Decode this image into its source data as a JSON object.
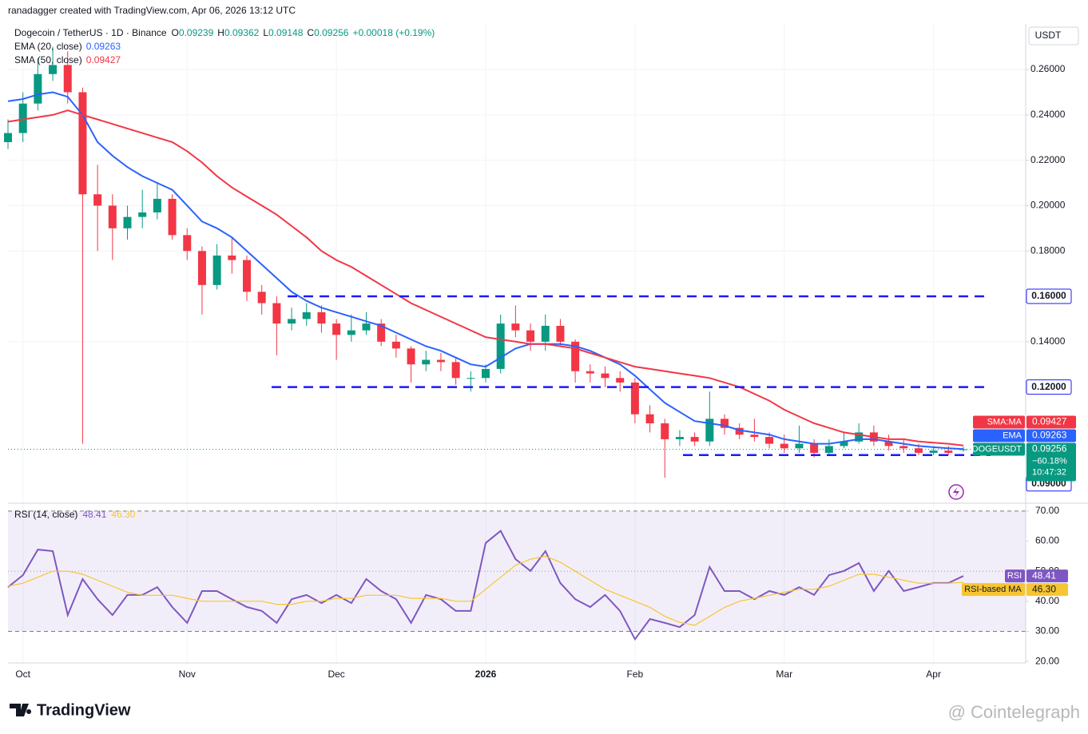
{
  "header": {
    "attribution": "ranadagger created with TradingView.com, Apr 06, 2026 13:12 UTC",
    "symbol": "Dogecoin / TetherUS · 1D · Binance",
    "ohlc_keys": [
      "O",
      "H",
      "L",
      "C"
    ],
    "change": "+0.00018 (+0.19%)",
    "currency": "USDT"
  },
  "chart_data": [
    {
      "type": "candlestick",
      "categories": [
        null,
        "Oct",
        null,
        null,
        null,
        null,
        null,
        null,
        null,
        null,
        null,
        null,
        "Nov",
        null,
        null,
        null,
        null,
        null,
        null,
        null,
        null,
        null,
        "Dec",
        null,
        null,
        null,
        null,
        null,
        null,
        null,
        null,
        null,
        "2026",
        null,
        null,
        null,
        null,
        null,
        null,
        null,
        null,
        null,
        "Feb",
        null,
        null,
        null,
        null,
        null,
        null,
        null,
        null,
        null,
        "Mar",
        null,
        null,
        null,
        null,
        null,
        null,
        null,
        null,
        null,
        "Apr",
        null,
        null
      ],
      "open": [
        0.228,
        0.232,
        0.245,
        0.258,
        0.262,
        0.25,
        0.205,
        0.2,
        0.19,
        0.195,
        0.197,
        0.203,
        0.187,
        0.18,
        0.165,
        0.178,
        0.176,
        0.162,
        0.157,
        0.148,
        0.15,
        0.153,
        0.148,
        0.143,
        0.145,
        0.148,
        0.14,
        0.137,
        0.13,
        0.132,
        0.131,
        0.124,
        0.124,
        0.128,
        0.148,
        0.145,
        0.14,
        0.147,
        0.14,
        0.127,
        0.126,
        0.124,
        0.122,
        0.108,
        0.104,
        0.097,
        0.098,
        0.096,
        0.106,
        0.102,
        0.099,
        0.098,
        0.095,
        0.093,
        0.095,
        0.091,
        0.094,
        0.096,
        0.1,
        0.096,
        0.094,
        0.093,
        0.091,
        0.092,
        0.09239
      ],
      "high": [
        0.238,
        0.25,
        0.265,
        0.27,
        0.268,
        0.252,
        0.218,
        0.205,
        0.2,
        0.207,
        0.21,
        0.205,
        0.19,
        0.182,
        0.183,
        0.186,
        0.178,
        0.165,
        0.16,
        0.155,
        0.157,
        0.156,
        0.15,
        0.152,
        0.153,
        0.15,
        0.143,
        0.138,
        0.136,
        0.135,
        0.133,
        0.127,
        0.13,
        0.152,
        0.156,
        0.148,
        0.152,
        0.15,
        0.141,
        0.13,
        0.129,
        0.127,
        0.124,
        0.112,
        0.106,
        0.101,
        0.1,
        0.118,
        0.108,
        0.104,
        0.106,
        0.1,
        0.099,
        0.103,
        0.097,
        0.097,
        0.1,
        0.104,
        0.103,
        0.099,
        0.097,
        0.095,
        0.094,
        0.094,
        0.09362
      ],
      "low": [
        0.225,
        0.228,
        0.242,
        0.255,
        0.245,
        0.095,
        0.18,
        0.176,
        0.185,
        0.19,
        0.194,
        0.185,
        0.176,
        0.152,
        0.163,
        0.17,
        0.158,
        0.152,
        0.134,
        0.145,
        0.147,
        0.144,
        0.132,
        0.14,
        0.143,
        0.138,
        0.133,
        0.122,
        0.127,
        0.127,
        0.121,
        0.118,
        0.122,
        0.126,
        0.142,
        0.136,
        0.136,
        0.138,
        0.122,
        0.122,
        0.12,
        0.118,
        0.104,
        0.1,
        0.08,
        0.094,
        0.094,
        0.094,
        0.099,
        0.097,
        0.096,
        0.093,
        0.091,
        0.091,
        0.089,
        0.09,
        0.093,
        0.095,
        0.094,
        0.092,
        0.091,
        0.09,
        0.09,
        0.09,
        0.09148
      ],
      "close": [
        0.232,
        0.245,
        0.258,
        0.262,
        0.25,
        0.205,
        0.2,
        0.19,
        0.195,
        0.197,
        0.203,
        0.187,
        0.18,
        0.165,
        0.178,
        0.176,
        0.162,
        0.157,
        0.148,
        0.15,
        0.153,
        0.148,
        0.143,
        0.145,
        0.148,
        0.14,
        0.137,
        0.13,
        0.132,
        0.131,
        0.124,
        0.124,
        0.128,
        0.148,
        0.145,
        0.14,
        0.147,
        0.14,
        0.127,
        0.126,
        0.124,
        0.122,
        0.108,
        0.104,
        0.097,
        0.098,
        0.096,
        0.106,
        0.102,
        0.099,
        0.098,
        0.095,
        0.093,
        0.095,
        0.091,
        0.094,
        0.096,
        0.1,
        0.096,
        0.094,
        0.093,
        0.091,
        0.092,
        0.091,
        0.09256
      ],
      "up_color": "#089981",
      "down_color": "#f23645",
      "series": [
        {
          "name": "EMA (20, close)",
          "tag": "EMA",
          "color": "#2962ff",
          "values": [
            0.246,
            0.247,
            0.249,
            0.25,
            0.248,
            0.24,
            0.228,
            0.222,
            0.217,
            0.213,
            0.21,
            0.207,
            0.2,
            0.193,
            0.19,
            0.186,
            0.18,
            0.174,
            0.168,
            0.162,
            0.158,
            0.155,
            0.153,
            0.151,
            0.149,
            0.147,
            0.144,
            0.141,
            0.138,
            0.136,
            0.133,
            0.13,
            0.129,
            0.133,
            0.137,
            0.139,
            0.139,
            0.139,
            0.138,
            0.136,
            0.133,
            0.13,
            0.125,
            0.119,
            0.113,
            0.109,
            0.105,
            0.104,
            0.103,
            0.101,
            0.1,
            0.099,
            0.097,
            0.096,
            0.095,
            0.095,
            0.096,
            0.097,
            0.097,
            0.096,
            0.095,
            0.094,
            0.0935,
            0.093,
            0.09263
          ]
        },
        {
          "name": "SMA (50, close)",
          "tag": "SMA:MA",
          "color": "#f23645",
          "values": [
            0.237,
            0.238,
            0.239,
            0.24,
            0.242,
            0.24,
            0.238,
            0.236,
            0.234,
            0.232,
            0.23,
            0.228,
            0.224,
            0.219,
            0.213,
            0.208,
            0.204,
            0.2,
            0.196,
            0.191,
            0.186,
            0.18,
            0.176,
            0.173,
            0.169,
            0.165,
            0.161,
            0.157,
            0.154,
            0.151,
            0.148,
            0.145,
            0.142,
            0.141,
            0.14,
            0.139,
            0.139,
            0.138,
            0.137,
            0.135,
            0.133,
            0.131,
            0.129,
            0.128,
            0.127,
            0.126,
            0.125,
            0.124,
            0.122,
            0.12,
            0.117,
            0.114,
            0.11,
            0.107,
            0.104,
            0.102,
            0.1,
            0.099,
            0.098,
            0.097,
            0.097,
            0.096,
            0.0955,
            0.095,
            0.09427
          ]
        }
      ],
      "last_tag": "DOGEUSDT",
      "last_change_label": "−60.18%",
      "countdown": "10:47:32",
      "levels": [
        {
          "value": 0.16,
          "label": "0.16000"
        },
        {
          "value": 0.12,
          "label": "0.12000"
        },
        {
          "value": 0.09,
          "label": "0.09000"
        }
      ],
      "level_color": "#1a1aff",
      "ylim": [
        0.0688,
        0.2801
      ],
      "yticks": [
        {
          "value": 0.14,
          "label": "0.14000"
        },
        {
          "value": 0.18,
          "label": "0.18000"
        },
        {
          "value": 0.2,
          "label": "0.20000"
        },
        {
          "value": 0.22,
          "label": "0.22000"
        },
        {
          "value": 0.24,
          "label": "0.24000"
        },
        {
          "value": 0.26,
          "label": "0.26000"
        }
      ],
      "grid": true
    },
    {
      "type": "line",
      "title": "RSI (14, close)",
      "series": [
        {
          "name": "RSI",
          "color": "#7e57c2",
          "values": [
            44.7,
            48.7,
            57.2,
            56.7,
            35.4,
            47.4,
            40.7,
            35.4,
            42.1,
            42.1,
            44.7,
            38.1,
            32.8,
            43.4,
            43.4,
            40.7,
            38.1,
            36.8,
            32.8,
            40.7,
            42.1,
            39.4,
            42.1,
            39.4,
            47.4,
            43.4,
            40.7,
            32.8,
            42.1,
            40.7,
            36.8,
            36.8,
            59.4,
            63.4,
            54.0,
            50.1,
            56.7,
            46.1,
            40.7,
            38.1,
            42.1,
            36.8,
            27.4,
            34.1,
            32.8,
            31.4,
            35.4,
            51.4,
            43.4,
            43.4,
            40.7,
            43.4,
            42.1,
            44.7,
            42.1,
            48.7,
            50.1,
            52.7,
            43.4,
            50.1,
            43.4,
            44.7,
            46.1,
            46.1,
            48.41
          ]
        },
        {
          "name": "RSI-based MA",
          "color": "#f7c531",
          "last_label": "46.30",
          "values": [
            45,
            46,
            48,
            50,
            50,
            49,
            47,
            45,
            43,
            42,
            42,
            42,
            41,
            40,
            40,
            40,
            40,
            40,
            39,
            39,
            40,
            40,
            41,
            41,
            42,
            42,
            42,
            41,
            41,
            41,
            40,
            40,
            44,
            48,
            52,
            54,
            55,
            53,
            50,
            47,
            44,
            42,
            40,
            38,
            35,
            33,
            32,
            35,
            38,
            40,
            41,
            42,
            43,
            44,
            44,
            45,
            47,
            49,
            49,
            48,
            47,
            46,
            46,
            46,
            46.3
          ]
        }
      ],
      "bands": [
        70,
        30
      ],
      "midline": 50,
      "ylim": [
        19.5,
        72.1
      ],
      "yticks": [
        {
          "value": 70,
          "label": "70.00"
        },
        {
          "value": 60,
          "label": "60.00"
        },
        {
          "value": 50,
          "label": "50.00"
        },
        {
          "value": 40,
          "label": "40.00"
        },
        {
          "value": 30,
          "label": "30.00"
        },
        {
          "value": 20,
          "label": "20.00"
        }
      ]
    }
  ],
  "footer": {
    "logo": "TradingView",
    "watermark": "@ Cointelegraph"
  }
}
